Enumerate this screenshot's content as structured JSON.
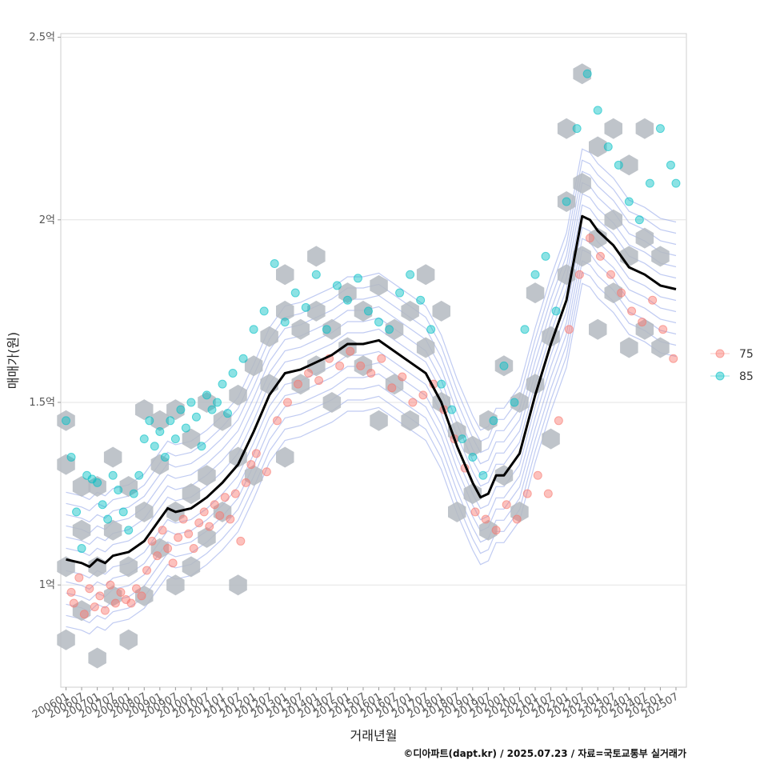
{
  "chart_data": {
    "type": "scatter",
    "xlabel": "거래년월",
    "ylabel": "매매가(원)",
    "caption": "©디아파트(dapt.kr) / 2025.07.23 / 자료=국토교통부 실거래가",
    "x_ticks": [
      "200601",
      "200607",
      "200701",
      "200707",
      "200801",
      "200807",
      "200901",
      "200907",
      "201001",
      "201007",
      "201101",
      "201107",
      "201201",
      "201207",
      "201301",
      "201307",
      "201401",
      "201407",
      "201501",
      "201507",
      "201601",
      "201607",
      "201701",
      "201707",
      "201801",
      "201807",
      "201901",
      "201907",
      "202001",
      "202007",
      "202101",
      "202107",
      "202201",
      "202207",
      "202301",
      "202307",
      "202401",
      "202407",
      "202501",
      "202507"
    ],
    "y_ticks": [
      {
        "value": 1.0,
        "label": "1억"
      },
      {
        "value": 1.5,
        "label": "1.5억"
      },
      {
        "value": 2.0,
        "label": "2억"
      },
      {
        "value": 2.5,
        "label": "2.5억"
      }
    ],
    "xlim": [
      "200511",
      "202511"
    ],
    "ylim": [
      0.72,
      2.51
    ],
    "grid": true,
    "legend_position": "right",
    "legend": [
      {
        "label": "75",
        "color": "#F8766D"
      },
      {
        "label": "85",
        "color": "#00BFC4"
      }
    ],
    "colors": {
      "hex_fill": "#B4BAC1",
      "contour": "#8DA0E8",
      "trend": "#000000"
    },
    "series": [
      {
        "name": "75",
        "points": [
          [
            "200603",
            0.98
          ],
          [
            "200604",
            0.95
          ],
          [
            "200606",
            1.02
          ],
          [
            "200608",
            0.92
          ],
          [
            "200610",
            0.99
          ],
          [
            "200612",
            0.94
          ],
          [
            "200702",
            0.97
          ],
          [
            "200704",
            0.93
          ],
          [
            "200706",
            1.0
          ],
          [
            "200708",
            0.95
          ],
          [
            "200710",
            0.98
          ],
          [
            "200712",
            0.96
          ],
          [
            "200802",
            0.95
          ],
          [
            "200804",
            0.99
          ],
          [
            "200806",
            0.97
          ],
          [
            "200808",
            1.04
          ],
          [
            "200810",
            1.12
          ],
          [
            "200812",
            1.08
          ],
          [
            "200902",
            1.15
          ],
          [
            "200904",
            1.1
          ],
          [
            "200906",
            1.06
          ],
          [
            "200908",
            1.13
          ],
          [
            "200910",
            1.18
          ],
          [
            "200912",
            1.14
          ],
          [
            "201002",
            1.1
          ],
          [
            "201004",
            1.17
          ],
          [
            "201006",
            1.2
          ],
          [
            "201008",
            1.16
          ],
          [
            "201010",
            1.22
          ],
          [
            "201012",
            1.19
          ],
          [
            "201102",
            1.24
          ],
          [
            "201104",
            1.18
          ],
          [
            "201106",
            1.25
          ],
          [
            "201108",
            1.12
          ],
          [
            "201110",
            1.28
          ],
          [
            "201112",
            1.33
          ],
          [
            "201202",
            1.36
          ],
          [
            "201206",
            1.31
          ],
          [
            "201210",
            1.45
          ],
          [
            "201302",
            1.5
          ],
          [
            "201306",
            1.55
          ],
          [
            "201310",
            1.58
          ],
          [
            "201402",
            1.56
          ],
          [
            "201406",
            1.62
          ],
          [
            "201410",
            1.6
          ],
          [
            "201502",
            1.64
          ],
          [
            "201506",
            1.6
          ],
          [
            "201510",
            1.58
          ],
          [
            "201602",
            1.62
          ],
          [
            "201606",
            1.54
          ],
          [
            "201610",
            1.57
          ],
          [
            "201702",
            1.5
          ],
          [
            "201706",
            1.52
          ],
          [
            "201710",
            1.55
          ],
          [
            "201802",
            1.48
          ],
          [
            "201806",
            1.4
          ],
          [
            "201810",
            1.32
          ],
          [
            "201902",
            1.2
          ],
          [
            "201906",
            1.18
          ],
          [
            "201910",
            1.15
          ],
          [
            "202002",
            1.22
          ],
          [
            "202006",
            1.18
          ],
          [
            "202010",
            1.25
          ],
          [
            "202102",
            1.3
          ],
          [
            "202106",
            1.25
          ],
          [
            "202110",
            1.45
          ],
          [
            "202202",
            1.7
          ],
          [
            "202206",
            1.85
          ],
          [
            "202210",
            1.95
          ],
          [
            "202302",
            1.9
          ],
          [
            "202306",
            1.85
          ],
          [
            "202310",
            1.8
          ],
          [
            "202402",
            1.75
          ],
          [
            "202406",
            1.72
          ],
          [
            "202410",
            1.78
          ],
          [
            "202502",
            1.7
          ],
          [
            "202506",
            1.62
          ]
        ]
      },
      {
        "name": "85",
        "points": [
          [
            "200601",
            1.45
          ],
          [
            "200603",
            1.35
          ],
          [
            "200605",
            1.2
          ],
          [
            "200607",
            1.1
          ],
          [
            "200609",
            1.3
          ],
          [
            "200611",
            1.29
          ],
          [
            "200701",
            1.28
          ],
          [
            "200703",
            1.22
          ],
          [
            "200705",
            1.18
          ],
          [
            "200707",
            1.3
          ],
          [
            "200709",
            1.26
          ],
          [
            "200711",
            1.2
          ],
          [
            "200801",
            1.15
          ],
          [
            "200803",
            1.25
          ],
          [
            "200805",
            1.3
          ],
          [
            "200807",
            1.4
          ],
          [
            "200809",
            1.45
          ],
          [
            "200811",
            1.38
          ],
          [
            "200901",
            1.42
          ],
          [
            "200903",
            1.35
          ],
          [
            "200905",
            1.45
          ],
          [
            "200907",
            1.4
          ],
          [
            "200909",
            1.48
          ],
          [
            "200911",
            1.43
          ],
          [
            "201001",
            1.5
          ],
          [
            "201003",
            1.46
          ],
          [
            "201005",
            1.38
          ],
          [
            "201007",
            1.52
          ],
          [
            "201009",
            1.48
          ],
          [
            "201011",
            1.5
          ],
          [
            "201101",
            1.55
          ],
          [
            "201103",
            1.47
          ],
          [
            "201105",
            1.58
          ],
          [
            "201109",
            1.62
          ],
          [
            "201201",
            1.7
          ],
          [
            "201205",
            1.75
          ],
          [
            "201209",
            1.88
          ],
          [
            "201301",
            1.72
          ],
          [
            "201305",
            1.8
          ],
          [
            "201309",
            1.76
          ],
          [
            "201401",
            1.85
          ],
          [
            "201405",
            1.7
          ],
          [
            "201409",
            1.82
          ],
          [
            "201501",
            1.78
          ],
          [
            "201505",
            1.84
          ],
          [
            "201509",
            1.75
          ],
          [
            "201601",
            1.72
          ],
          [
            "201605",
            1.7
          ],
          [
            "201609",
            1.8
          ],
          [
            "201701",
            1.85
          ],
          [
            "201705",
            1.78
          ],
          [
            "201709",
            1.7
          ],
          [
            "201801",
            1.55
          ],
          [
            "201805",
            1.48
          ],
          [
            "201809",
            1.4
          ],
          [
            "201901",
            1.35
          ],
          [
            "201905",
            1.3
          ],
          [
            "201909",
            1.45
          ],
          [
            "202001",
            1.6
          ],
          [
            "202005",
            1.5
          ],
          [
            "202009",
            1.7
          ],
          [
            "202101",
            1.85
          ],
          [
            "202105",
            1.9
          ],
          [
            "202109",
            1.75
          ],
          [
            "202201",
            2.05
          ],
          [
            "202205",
            2.25
          ],
          [
            "202209",
            2.4
          ],
          [
            "202301",
            2.3
          ],
          [
            "202305",
            2.2
          ],
          [
            "202309",
            2.15
          ],
          [
            "202401",
            2.05
          ],
          [
            "202405",
            2.0
          ],
          [
            "202409",
            2.1
          ],
          [
            "202501",
            2.25
          ],
          [
            "202505",
            2.15
          ],
          [
            "202507",
            2.1
          ]
        ]
      }
    ],
    "trend_line": [
      [
        "200601",
        1.07
      ],
      [
        "200607",
        1.06
      ],
      [
        "200610",
        1.05
      ],
      [
        "200701",
        1.07
      ],
      [
        "200704",
        1.06
      ],
      [
        "200707",
        1.08
      ],
      [
        "200801",
        1.09
      ],
      [
        "200807",
        1.12
      ],
      [
        "200901",
        1.18
      ],
      [
        "200904",
        1.21
      ],
      [
        "200907",
        1.2
      ],
      [
        "201001",
        1.21
      ],
      [
        "201007",
        1.24
      ],
      [
        "201101",
        1.28
      ],
      [
        "201107",
        1.33
      ],
      [
        "201201",
        1.42
      ],
      [
        "201207",
        1.52
      ],
      [
        "201301",
        1.58
      ],
      [
        "201307",
        1.59
      ],
      [
        "201401",
        1.61
      ],
      [
        "201407",
        1.63
      ],
      [
        "201501",
        1.66
      ],
      [
        "201507",
        1.66
      ],
      [
        "201601",
        1.67
      ],
      [
        "201607",
        1.64
      ],
      [
        "201701",
        1.61
      ],
      [
        "201707",
        1.58
      ],
      [
        "201801",
        1.5
      ],
      [
        "201807",
        1.38
      ],
      [
        "201901",
        1.28
      ],
      [
        "201904",
        1.24
      ],
      [
        "201907",
        1.25
      ],
      [
        "201910",
        1.3
      ],
      [
        "202001",
        1.3
      ],
      [
        "202007",
        1.36
      ],
      [
        "202101",
        1.52
      ],
      [
        "202107",
        1.66
      ],
      [
        "202201",
        1.78
      ],
      [
        "202207",
        2.01
      ],
      [
        "202210",
        2.0
      ],
      [
        "202301",
        1.97
      ],
      [
        "202307",
        1.93
      ],
      [
        "202401",
        1.87
      ],
      [
        "202407",
        1.85
      ],
      [
        "202501",
        1.82
      ],
      [
        "202507",
        1.81
      ]
    ],
    "hex_bins": [
      [
        "200601",
        1.45
      ],
      [
        "200601",
        1.33
      ],
      [
        "200601",
        1.05
      ],
      [
        "200601",
        0.85
      ],
      [
        "200607",
        1.27
      ],
      [
        "200607",
        1.15
      ],
      [
        "200607",
        0.93
      ],
      [
        "200701",
        1.27
      ],
      [
        "200701",
        1.05
      ],
      [
        "200701",
        0.8
      ],
      [
        "200707",
        1.35
      ],
      [
        "200707",
        1.15
      ],
      [
        "200707",
        0.97
      ],
      [
        "200801",
        1.27
      ],
      [
        "200801",
        1.05
      ],
      [
        "200801",
        0.85
      ],
      [
        "200807",
        1.48
      ],
      [
        "200807",
        1.2
      ],
      [
        "200807",
        0.97
      ],
      [
        "200901",
        1.45
      ],
      [
        "200901",
        1.33
      ],
      [
        "200901",
        1.1
      ],
      [
        "200907",
        1.48
      ],
      [
        "200907",
        1.2
      ],
      [
        "200907",
        1.0
      ],
      [
        "201001",
        1.4
      ],
      [
        "201001",
        1.25
      ],
      [
        "201001",
        1.05
      ],
      [
        "201007",
        1.5
      ],
      [
        "201007",
        1.3
      ],
      [
        "201007",
        1.13
      ],
      [
        "201101",
        1.45
      ],
      [
        "201101",
        1.2
      ],
      [
        "201107",
        1.52
      ],
      [
        "201107",
        1.35
      ],
      [
        "201107",
        1.0
      ],
      [
        "201201",
        1.6
      ],
      [
        "201201",
        1.3
      ],
      [
        "201207",
        1.68
      ],
      [
        "201207",
        1.55
      ],
      [
        "201301",
        1.85
      ],
      [
        "201301",
        1.75
      ],
      [
        "201301",
        1.35
      ],
      [
        "201307",
        1.7
      ],
      [
        "201307",
        1.55
      ],
      [
        "201401",
        1.9
      ],
      [
        "201401",
        1.75
      ],
      [
        "201401",
        1.6
      ],
      [
        "201407",
        1.7
      ],
      [
        "201407",
        1.5
      ],
      [
        "201501",
        1.8
      ],
      [
        "201501",
        1.65
      ],
      [
        "201507",
        1.75
      ],
      [
        "201507",
        1.6
      ],
      [
        "201601",
        1.82
      ],
      [
        "201601",
        1.45
      ],
      [
        "201607",
        1.7
      ],
      [
        "201607",
        1.55
      ],
      [
        "201701",
        1.75
      ],
      [
        "201701",
        1.45
      ],
      [
        "201707",
        1.85
      ],
      [
        "201707",
        1.65
      ],
      [
        "201801",
        1.75
      ],
      [
        "201801",
        1.5
      ],
      [
        "201807",
        1.42
      ],
      [
        "201807",
        1.2
      ],
      [
        "201901",
        1.38
      ],
      [
        "201901",
        1.25
      ],
      [
        "201907",
        1.45
      ],
      [
        "201907",
        1.15
      ],
      [
        "202001",
        1.6
      ],
      [
        "202001",
        1.3
      ],
      [
        "202007",
        1.5
      ],
      [
        "202007",
        1.2
      ],
      [
        "202101",
        1.8
      ],
      [
        "202101",
        1.55
      ],
      [
        "202107",
        1.68
      ],
      [
        "202107",
        1.4
      ],
      [
        "202201",
        2.25
      ],
      [
        "202201",
        2.05
      ],
      [
        "202201",
        1.85
      ],
      [
        "202207",
        2.4
      ],
      [
        "202207",
        2.1
      ],
      [
        "202207",
        1.9
      ],
      [
        "202301",
        2.2
      ],
      [
        "202301",
        1.95
      ],
      [
        "202301",
        1.7
      ],
      [
        "202307",
        2.25
      ],
      [
        "202307",
        2.0
      ],
      [
        "202307",
        1.8
      ],
      [
        "202401",
        2.15
      ],
      [
        "202401",
        1.9
      ],
      [
        "202401",
        1.65
      ],
      [
        "202407",
        2.25
      ],
      [
        "202407",
        1.95
      ],
      [
        "202407",
        1.7
      ],
      [
        "202501",
        1.9
      ],
      [
        "202501",
        1.65
      ]
    ]
  }
}
